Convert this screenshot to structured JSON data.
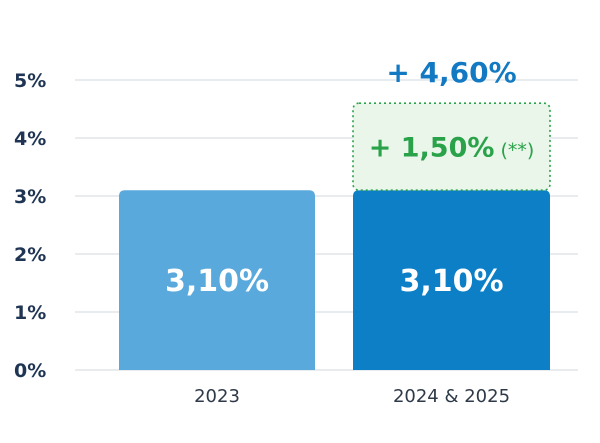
{
  "chart_data": {
    "type": "bar",
    "categories": [
      "2023",
      "2024 & 2025"
    ],
    "y_ticks": [
      "0%",
      "1%",
      "2%",
      "3%",
      "4%",
      "5%"
    ],
    "ylim": [
      0,
      5
    ],
    "grid": true,
    "bars": [
      {
        "category": "2023",
        "value": 3.1,
        "label": "3,10%",
        "color": "#5aa9dc"
      },
      {
        "category": "2024 & 2025",
        "value": 3.1,
        "label": "3,10%",
        "color": "#0c7fc7"
      }
    ],
    "increment": {
      "category": "2024 & 2025",
      "base": 3.1,
      "value": 1.5,
      "label": "+ 1,50%",
      "note": "(**)",
      "color": "#2aa24a",
      "fill": "#eaf6ea"
    },
    "total": {
      "category": "2024 & 2025",
      "value": 4.6,
      "label": "+ 4,60%",
      "color": "#1279c2"
    },
    "colors": {
      "tick_text": "#1f3553",
      "grid": "#e2e5ea",
      "category_text": "#2f3a48"
    }
  }
}
